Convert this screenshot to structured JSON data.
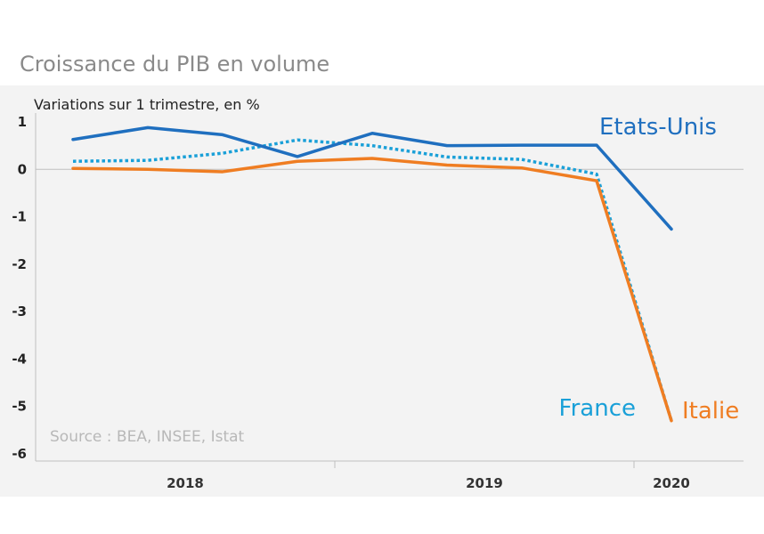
{
  "title": "Croissance du PIB en volume",
  "colors": {
    "background_panel": "#f3f3f3",
    "axis": "#bfbfbf"
  },
  "chart_data": {
    "type": "line",
    "title": "Croissance du PIB en volume",
    "ylabel": "Variations sur 1 trimestre, en %",
    "ylim": [
      -6,
      1
    ],
    "yticks": [
      1,
      0,
      -1,
      -2,
      -3,
      -4,
      -5,
      -6
    ],
    "x": [
      "2018 T1",
      "2018 T2",
      "2018 T3",
      "2018 T4",
      "2019 T1",
      "2019 T2",
      "2019 T3",
      "2019 T4",
      "2020 T1"
    ],
    "x_groups": [
      {
        "label": "2018",
        "quarters": 4
      },
      {
        "label": "2019",
        "quarters": 4
      },
      {
        "label": "2020",
        "quarters": 1
      }
    ],
    "series": [
      {
        "name": "Etats-Unis",
        "color": "#1f6fbf",
        "style": "solid",
        "values": [
          0.63,
          0.88,
          0.73,
          0.27,
          0.76,
          0.5,
          0.51,
          0.51,
          -1.26
        ]
      },
      {
        "name": "France",
        "color": "#1aa0d8",
        "style": "dotted",
        "values": [
          0.17,
          0.19,
          0.34,
          0.62,
          0.5,
          0.26,
          0.21,
          -0.1,
          -5.3
        ]
      },
      {
        "name": "Italie",
        "color": "#ef7d22",
        "style": "solid",
        "values": [
          0.02,
          0.0,
          -0.05,
          0.17,
          0.23,
          0.09,
          0.03,
          -0.24,
          -5.3
        ]
      }
    ],
    "source": "Source : BEA, INSEE,  Istat",
    "grid": false
  }
}
